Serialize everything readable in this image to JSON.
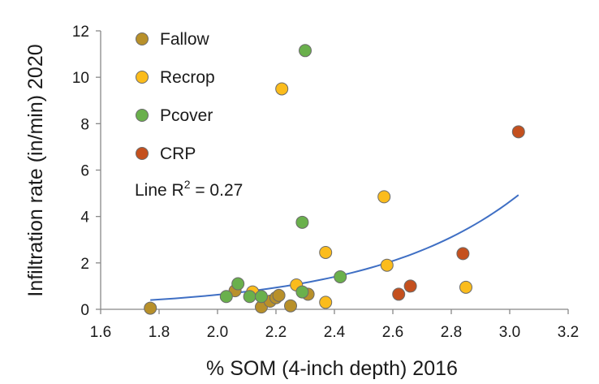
{
  "chart_data": {
    "type": "scatter",
    "title": "",
    "xlabel": "% SOM (4-inch depth) 2016",
    "ylabel": "Infiltration rate (in/min) 2020",
    "xlim": [
      1.6,
      3.2
    ],
    "ylim": [
      0,
      12
    ],
    "x_ticks": [
      "1.6",
      "1.8",
      "2.0",
      "2.2",
      "2.4",
      "2.6",
      "2.8",
      "3.0",
      "3.2"
    ],
    "y_ticks": [
      "0",
      "2",
      "4",
      "6",
      "8",
      "10",
      "12"
    ],
    "grid": false,
    "legend_position": "top-left",
    "series": [
      {
        "name": "Fallow",
        "color": "#b8902a",
        "points": [
          {
            "x": 1.77,
            "y": 0.05
          },
          {
            "x": 2.06,
            "y": 0.8
          },
          {
            "x": 2.15,
            "y": 0.1
          },
          {
            "x": 2.18,
            "y": 0.35
          },
          {
            "x": 2.2,
            "y": 0.5
          },
          {
            "x": 2.21,
            "y": 0.6
          },
          {
            "x": 2.25,
            "y": 0.15
          },
          {
            "x": 2.31,
            "y": 0.65
          }
        ]
      },
      {
        "name": "Recrop",
        "color": "#fbbc1c",
        "points": [
          {
            "x": 2.12,
            "y": 0.75
          },
          {
            "x": 2.22,
            "y": 9.5
          },
          {
            "x": 2.27,
            "y": 1.05
          },
          {
            "x": 2.37,
            "y": 2.45
          },
          {
            "x": 2.37,
            "y": 0.3
          },
          {
            "x": 2.57,
            "y": 4.85
          },
          {
            "x": 2.58,
            "y": 1.9
          },
          {
            "x": 2.85,
            "y": 0.95
          }
        ]
      },
      {
        "name": "Pcover",
        "color": "#6ab04c",
        "points": [
          {
            "x": 2.03,
            "y": 0.55
          },
          {
            "x": 2.07,
            "y": 1.1
          },
          {
            "x": 2.11,
            "y": 0.55
          },
          {
            "x": 2.15,
            "y": 0.55
          },
          {
            "x": 2.29,
            "y": 3.75
          },
          {
            "x": 2.29,
            "y": 0.75
          },
          {
            "x": 2.3,
            "y": 11.15
          },
          {
            "x": 2.42,
            "y": 1.4
          }
        ]
      },
      {
        "name": "CRP",
        "color": "#c4501e",
        "points": [
          {
            "x": 2.62,
            "y": 0.65
          },
          {
            "x": 2.66,
            "y": 1.0
          },
          {
            "x": 2.84,
            "y": 2.4
          },
          {
            "x": 3.03,
            "y": 7.65
          }
        ]
      }
    ],
    "trendline": {
      "type": "exponential",
      "color": "#3f6fc4",
      "x_range": [
        1.77,
        3.03
      ],
      "equation_a": 0.0115,
      "equation_b": 2.0
    },
    "annotation": {
      "prefix": "Line R",
      "superscript": "2",
      "suffix": " = 0.27"
    }
  }
}
